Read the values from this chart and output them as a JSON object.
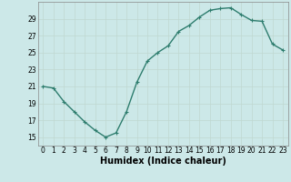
{
  "x": [
    0,
    1,
    2,
    3,
    4,
    5,
    6,
    7,
    8,
    9,
    10,
    11,
    12,
    13,
    14,
    15,
    16,
    17,
    18,
    19,
    20,
    21,
    22,
    23
  ],
  "y": [
    21,
    20.8,
    19.2,
    18.0,
    16.8,
    15.8,
    15.0,
    15.5,
    18.0,
    21.5,
    24.0,
    25.0,
    25.8,
    27.5,
    28.2,
    29.2,
    30.0,
    30.2,
    30.3,
    29.5,
    28.8,
    28.7,
    26.0,
    25.3
  ],
  "line_color": "#2e7d6e",
  "marker": "+",
  "marker_size": 3,
  "bg_color": "#cce8e8",
  "grid_color": "#c0d8d0",
  "xlabel": "Humidex (Indice chaleur)",
  "xlim": [
    -0.5,
    23.5
  ],
  "ylim": [
    14,
    31
  ],
  "yticks": [
    15,
    17,
    19,
    21,
    23,
    25,
    27,
    29
  ],
  "xticks": [
    0,
    1,
    2,
    3,
    4,
    5,
    6,
    7,
    8,
    9,
    10,
    11,
    12,
    13,
    14,
    15,
    16,
    17,
    18,
    19,
    20,
    21,
    22,
    23
  ],
  "tick_label_fontsize": 5.5,
  "xlabel_fontsize": 7,
  "linewidth": 1.0
}
